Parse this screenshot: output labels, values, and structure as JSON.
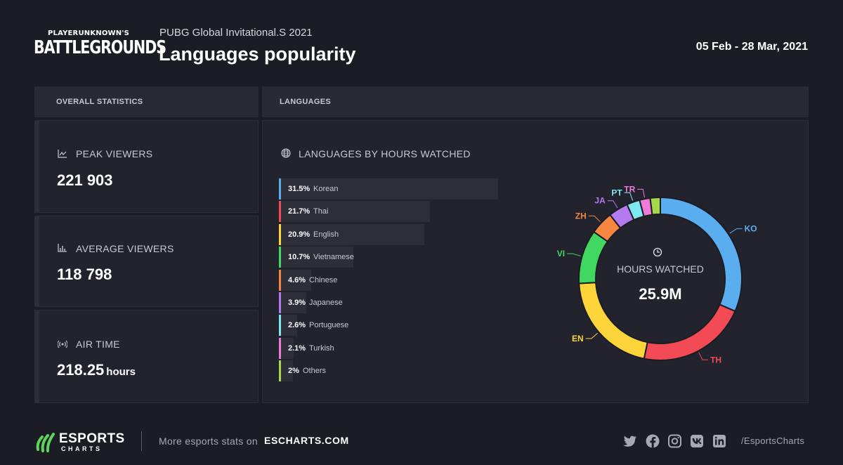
{
  "header": {
    "logo_top": "PLAYERUNKNOWN'S",
    "logo_main": "BATTLEGROUNDS",
    "event": "PUBG Global Invitational.S 2021",
    "title": "Languages popularity",
    "dates": "05 Feb - 28 Mar, 2021"
  },
  "panels": {
    "left_header": "OVERALL STATISTICS",
    "right_header": "LANGUAGES"
  },
  "stats": {
    "peak": {
      "label": "PEAK VIEWERS",
      "value": "221 903"
    },
    "average": {
      "label": "AVERAGE VIEWERS",
      "value": "118 798"
    },
    "airtime": {
      "label": "AIR TIME",
      "value": "218.25",
      "unit": "hours"
    }
  },
  "chart_data": {
    "type": "pie",
    "title": "LANGUAGES BY HOURS WATCHED",
    "center_label": "HOURS WATCHED",
    "center_value": "25.9M",
    "slices": [
      {
        "label": "Korean",
        "short": "KO",
        "pct_label": "31.5%",
        "value": 31.5,
        "color": "#5aaef0"
      },
      {
        "label": "Thai",
        "short": "TH",
        "pct_label": "21.7%",
        "value": 21.7,
        "color": "#f24b55"
      },
      {
        "label": "English",
        "short": "EN",
        "pct_label": "20.9%",
        "value": 20.9,
        "color": "#fdd43a"
      },
      {
        "label": "Vietnamese",
        "short": "VI",
        "pct_label": "10.7%",
        "value": 10.7,
        "color": "#41d862"
      },
      {
        "label": "Chinese",
        "short": "ZH",
        "pct_label": "4.6%",
        "value": 4.6,
        "color": "#f68640"
      },
      {
        "label": "Japanese",
        "short": "JA",
        "pct_label": "3.9%",
        "value": 3.9,
        "color": "#b57af0"
      },
      {
        "label": "Portuguese",
        "short": "PT",
        "pct_label": "2.6%",
        "value": 2.6,
        "color": "#7ee8f0"
      },
      {
        "label": "Turkish",
        "short": "TR",
        "pct_label": "2.1%",
        "value": 2.1,
        "color": "#f07ad8"
      },
      {
        "label": "Others",
        "short": "",
        "pct_label": "2%",
        "value": 2,
        "color": "#a6d84a"
      }
    ]
  },
  "footer": {
    "brand_main": "ESPORTS",
    "brand_sub": "CHARTS",
    "text": "More esports stats on",
    "link": "ESCHARTS.COM",
    "handle": "/EsportsCharts",
    "social_icons": [
      "twitter-icon",
      "facebook-icon",
      "instagram-icon",
      "vk-icon",
      "linkedin-icon"
    ]
  }
}
